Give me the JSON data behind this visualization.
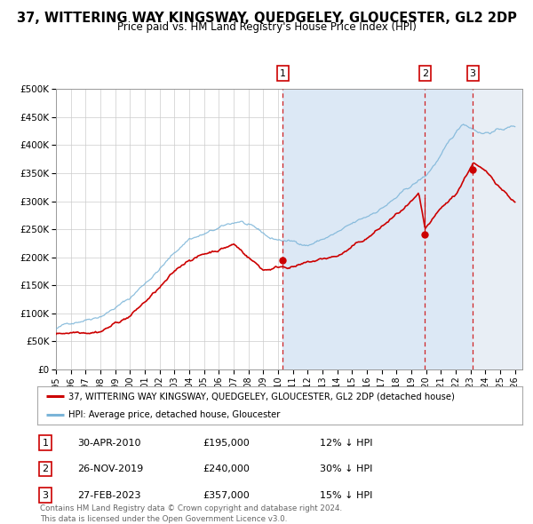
{
  "title": "37, WITTERING WAY KINGSWAY, QUEDGELEY, GLOUCESTER, GL2 2DP",
  "subtitle": "Price paid vs. HM Land Registry's House Price Index (HPI)",
  "xlim": [
    1995.0,
    2026.5
  ],
  "ylim": [
    0,
    500000
  ],
  "yticks": [
    0,
    50000,
    100000,
    150000,
    200000,
    250000,
    300000,
    350000,
    400000,
    450000,
    500000
  ],
  "ytick_labels": [
    "£0",
    "£50K",
    "£100K",
    "£150K",
    "£200K",
    "£250K",
    "£300K",
    "£350K",
    "£400K",
    "£450K",
    "£500K"
  ],
  "xtick_years": [
    1995,
    1996,
    1997,
    1998,
    1999,
    2000,
    2001,
    2002,
    2003,
    2004,
    2005,
    2006,
    2007,
    2008,
    2009,
    2010,
    2011,
    2012,
    2013,
    2014,
    2015,
    2016,
    2017,
    2018,
    2019,
    2020,
    2021,
    2022,
    2023,
    2024,
    2025,
    2026
  ],
  "sale_dates": [
    2010.33,
    2019.92,
    2023.15
  ],
  "sale_prices": [
    195000,
    240000,
    357000
  ],
  "sale_labels": [
    "1",
    "2",
    "3"
  ],
  "sale_info": [
    {
      "num": "1",
      "date": "30-APR-2010",
      "price": "£195,000",
      "hpi": "12% ↓ HPI"
    },
    {
      "num": "2",
      "date": "26-NOV-2019",
      "price": "£240,000",
      "hpi": "30% ↓ HPI"
    },
    {
      "num": "3",
      "date": "27-FEB-2023",
      "price": "£357,000",
      "hpi": "15% ↓ HPI"
    }
  ],
  "hpi_line_color": "#7ab4d8",
  "price_color": "#cc0000",
  "dashed_color": "#cc0000",
  "span_color": "#c8dcf0",
  "hatch_color": "#c0c8d8",
  "background_color": "#ffffff",
  "grid_color": "#cccccc",
  "title_fontsize": 10.5,
  "subtitle_fontsize": 8.5,
  "legend_label_red": "37, WITTERING WAY KINGSWAY, QUEDGELEY, GLOUCESTER, GL2 2DP (detached house)",
  "legend_label_blue": "HPI: Average price, detached house, Gloucester",
  "footer": "Contains HM Land Registry data © Crown copyright and database right 2024.\nThis data is licensed under the Open Government Licence v3.0.",
  "red_prev_high_at_sale2": 305000,
  "red_prev_high_at_sale3": 357000
}
